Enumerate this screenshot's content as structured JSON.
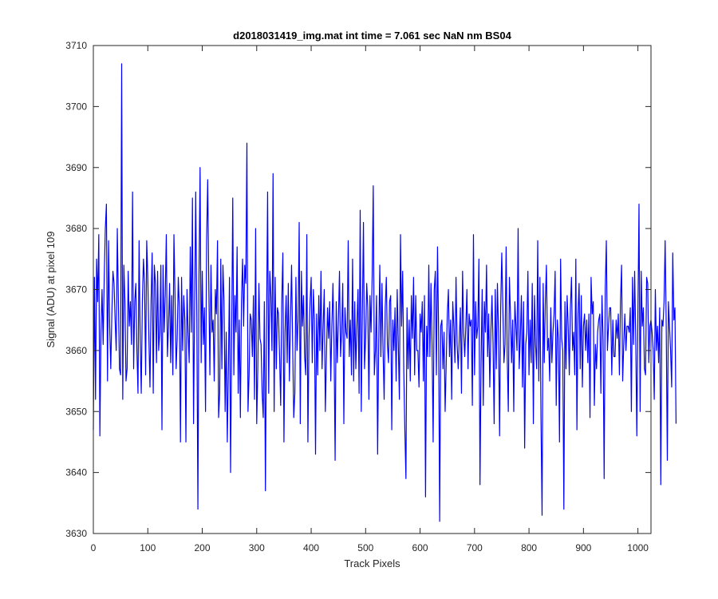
{
  "chart_data": {
    "type": "line",
    "title": "d2018031419_img.mat int time = 7.061 sec  NaN nm BS04",
    "xlabel": "Track Pixels",
    "ylabel": "Signal (ADU) at pixel 109",
    "xlim": [
      0,
      1024
    ],
    "ylim": [
      3630,
      3710
    ],
    "xticks": [
      0,
      100,
      200,
      300,
      400,
      500,
      600,
      700,
      800,
      900,
      1000
    ],
    "yticks": [
      3630,
      3640,
      3650,
      3660,
      3670,
      3680,
      3690,
      3700,
      3710
    ],
    "grid": false,
    "series": [
      {
        "color": "#0000ff",
        "x_start": 0,
        "x_step": 2,
        "values": [
          3647,
          3672,
          3652,
          3675,
          3668,
          3679,
          3646,
          3663,
          3670,
          3661,
          3672,
          3680,
          3684,
          3655,
          3678,
          3664,
          3657,
          3666,
          3673,
          3671,
          3665,
          3660,
          3680,
          3668,
          3657,
          3656,
          3707,
          3652,
          3674,
          3668,
          3655,
          3657,
          3673,
          3664,
          3668,
          3661,
          3686,
          3657,
          3668,
          3671,
          3660,
          3653,
          3678,
          3662,
          3653,
          3668,
          3675,
          3671,
          3656,
          3678,
          3672,
          3662,
          3654,
          3668,
          3676,
          3653,
          3674,
          3671,
          3658,
          3673,
          3660,
          3663,
          3674,
          3647,
          3674,
          3663,
          3669,
          3679,
          3659,
          3664,
          3671,
          3658,
          3669,
          3656,
          3679,
          3669,
          3657,
          3662,
          3672,
          3667,
          3645,
          3672,
          3660,
          3669,
          3665,
          3645,
          3670,
          3663,
          3658,
          3677,
          3663,
          3685,
          3648,
          3667,
          3686,
          3666,
          3634,
          3672,
          3690,
          3658,
          3673,
          3661,
          3667,
          3650,
          3678,
          3688,
          3671,
          3656,
          3674,
          3663,
          3665,
          3655,
          3670,
          3666,
          3678,
          3649,
          3653,
          3675,
          3657,
          3674,
          3668,
          3650,
          3663,
          3645,
          3657,
          3672,
          3640,
          3662,
          3685,
          3656,
          3669,
          3663,
          3677,
          3653,
          3665,
          3649,
          3668,
          3675,
          3664,
          3674,
          3671,
          3694,
          3650,
          3656,
          3666,
          3665,
          3659,
          3669,
          3652,
          3680,
          3648,
          3657,
          3671,
          3662,
          3661,
          3653,
          3649,
          3668,
          3637,
          3664,
          3686,
          3653,
          3673,
          3669,
          3660,
          3689,
          3650,
          3672,
          3657,
          3667,
          3666,
          3659,
          3651,
          3668,
          3676,
          3645,
          3663,
          3669,
          3658,
          3671,
          3655,
          3665,
          3674,
          3661,
          3649,
          3653,
          3672,
          3660,
          3665,
          3681,
          3648,
          3673,
          3664,
          3669,
          3659,
          3656,
          3679,
          3645,
          3662,
          3668,
          3672,
          3658,
          3670,
          3665,
          3643,
          3666,
          3656,
          3669,
          3660,
          3673,
          3657,
          3664,
          3670,
          3650,
          3659,
          3667,
          3662,
          3668,
          3655,
          3664,
          3671,
          3661,
          3642,
          3668,
          3658,
          3665,
          3673,
          3659,
          3663,
          3671,
          3648,
          3667,
          3663,
          3662,
          3678,
          3659,
          3665,
          3656,
          3675,
          3655,
          3668,
          3657,
          3664,
          3670,
          3653,
          3683,
          3650,
          3666,
          3681,
          3657,
          3662,
          3671,
          3667,
          3652,
          3669,
          3663,
          3672,
          3687,
          3656,
          3660,
          3669,
          3643,
          3661,
          3674,
          3659,
          3671,
          3660,
          3652,
          3667,
          3672,
          3661,
          3658,
          3668,
          3669,
          3647,
          3665,
          3660,
          3667,
          3655,
          3670,
          3661,
          3652,
          3679,
          3664,
          3673,
          3657,
          3647,
          3639,
          3667,
          3657,
          3665,
          3655,
          3669,
          3662,
          3672,
          3656,
          3669,
          3660,
          3660,
          3654,
          3666,
          3663,
          3668,
          3655,
          3669,
          3636,
          3664,
          3659,
          3674,
          3659,
          3671,
          3661,
          3645,
          3670,
          3673,
          3656,
          3677,
          3663,
          3632,
          3664,
          3665,
          3657,
          3663,
          3650,
          3658,
          3666,
          3670,
          3659,
          3665,
          3652,
          3668,
          3664,
          3658,
          3672,
          3661,
          3657,
          3662,
          3667,
          3653,
          3673,
          3663,
          3659,
          3664,
          3670,
          3657,
          3666,
          3664,
          3665,
          3651,
          3679,
          3656,
          3668,
          3662,
          3664,
          3675,
          3638,
          3658,
          3670,
          3651,
          3668,
          3663,
          3674,
          3659,
          3666,
          3654,
          3663,
          3669,
          3661,
          3648,
          3670,
          3657,
          3671,
          3663,
          3646,
          3667,
          3676,
          3667,
          3658,
          3661,
          3677,
          3659,
          3650,
          3672,
          3666,
          3658,
          3665,
          3650,
          3668,
          3664,
          3660,
          3680,
          3657,
          3662,
          3669,
          3654,
          3668,
          3644,
          3661,
          3663,
          3673,
          3656,
          3665,
          3658,
          3671,
          3648,
          3669,
          3661,
          3657,
          3678,
          3655,
          3672,
          3649,
          3633,
          3671,
          3658,
          3668,
          3674,
          3660,
          3662,
          3655,
          3667,
          3658,
          3663,
          3666,
          3673,
          3651,
          3665,
          3662,
          3645,
          3675,
          3662,
          3660,
          3634,
          3668,
          3657,
          3669,
          3664,
          3656,
          3667,
          3672,
          3660,
          3663,
          3656,
          3675,
          3647,
          3666,
          3671,
          3657,
          3669,
          3654,
          3664,
          3666,
          3660,
          3665,
          3658,
          3666,
          3649,
          3672,
          3666,
          3668,
          3651,
          3661,
          3657,
          3663,
          3665,
          3666,
          3653,
          3669,
          3662,
          3639,
          3670,
          3678,
          3660,
          3664,
          3667,
          3667,
          3656,
          3665,
          3659,
          3659,
          3665,
          3662,
          3666,
          3656,
          3668,
          3674,
          3655,
          3661,
          3666,
          3660,
          3664,
          3664,
          3663,
          3667,
          3650,
          3672,
          3661,
          3673,
          3662,
          3646,
          3666,
          3684,
          3650,
          3673,
          3664,
          3667,
          3657,
          3656,
          3672,
          3671,
          3658,
          3664,
          3665,
          3663,
          3660,
          3652,
          3670,
          3660,
          3664,
          3658,
          3667,
          3638,
          3665,
          3664,
          3668,
          3678,
          3664,
          3642,
          3668,
          3664,
          3660,
          3654,
          3676,
          3665,
          3667,
          3648
        ]
      }
    ]
  }
}
